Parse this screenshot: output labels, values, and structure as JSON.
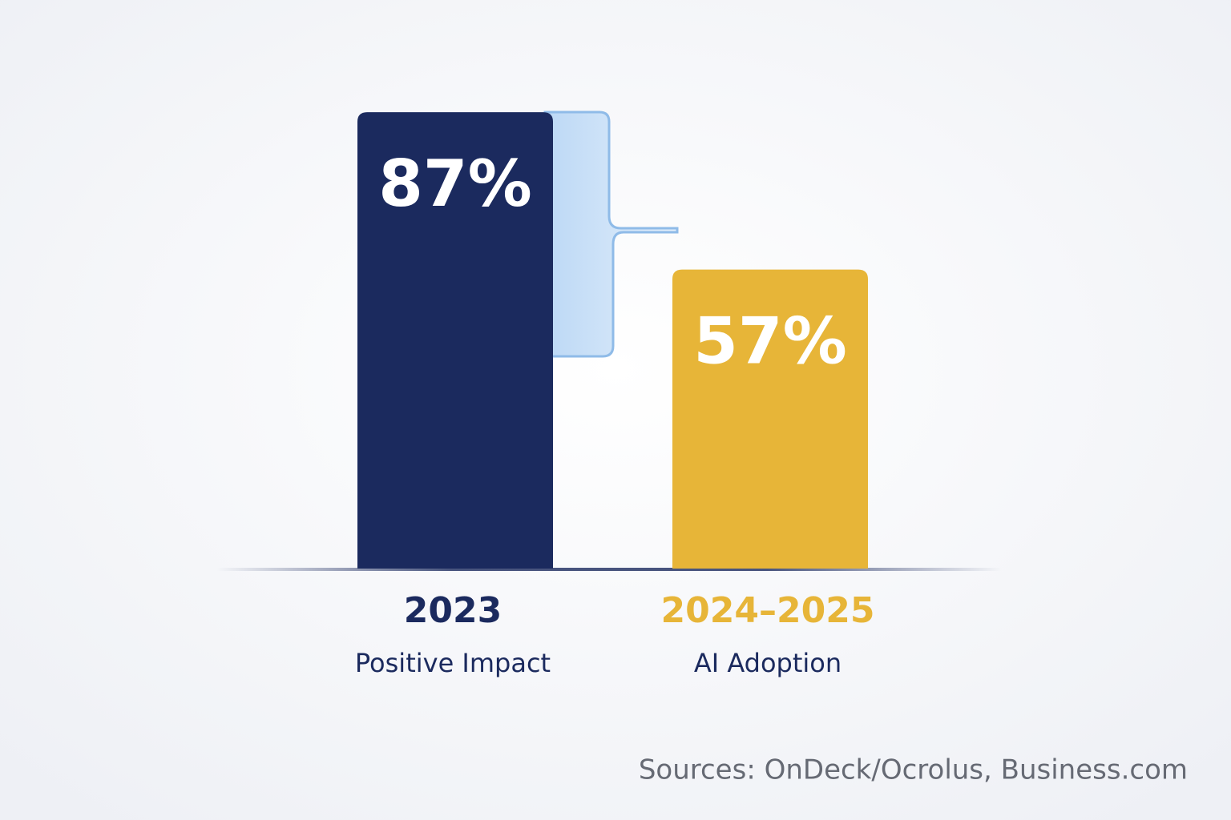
{
  "chart_data": {
    "type": "bar",
    "categories": [
      "2023",
      "2024–2025"
    ],
    "sublabels": [
      "Positive Impact",
      "AI Adoption"
    ],
    "values": [
      87,
      57
    ],
    "value_labels": [
      "87%",
      "57%"
    ],
    "colors": [
      "#1b2a5e",
      "#e7b538"
    ],
    "source": "Sources: OnDeck/Ocrolus, Business.com"
  }
}
